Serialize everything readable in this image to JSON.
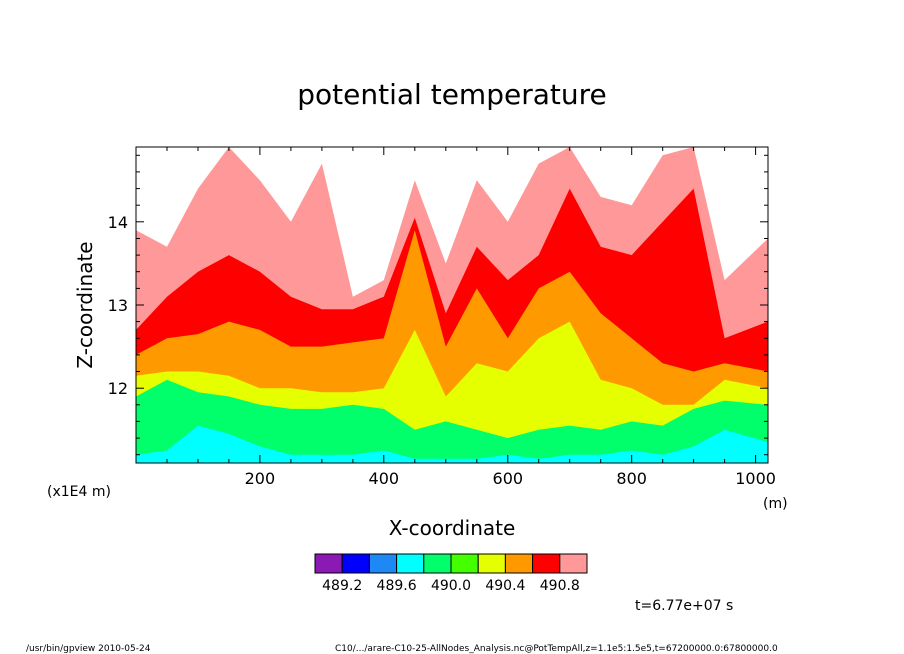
{
  "chart_data": {
    "type": "heatmap",
    "title": "potential temperature",
    "xlabel": "X-coordinate",
    "ylabel": "Z-coordinate",
    "x_unit": "(m)",
    "y_unit": "(x1E4 m)",
    "xlim": [
      0,
      1020
    ],
    "ylim": [
      11.1,
      14.9
    ],
    "xticks": [
      200,
      400,
      600,
      800,
      1000
    ],
    "yticks": [
      12,
      13,
      14
    ],
    "xtick_labels": [
      "200",
      "400",
      "600",
      "800",
      "1000"
    ],
    "ytick_labels": [
      "12",
      "13",
      "14"
    ],
    "colorbar": {
      "colors": [
        "#8b1ab4",
        "#0000ff",
        "#1e88f5",
        "#00ffff",
        "#00ff6a",
        "#44ff00",
        "#e6ff00",
        "#ff9900",
        "#ff0000",
        "#ff9999"
      ],
      "labels": [
        "489.2",
        "489.6",
        "490.0",
        "490.4",
        "490.8"
      ]
    },
    "contour_boundaries": {
      "x": [
        0,
        50,
        100,
        150,
        200,
        250,
        300,
        350,
        400,
        450,
        500,
        550,
        600,
        650,
        700,
        750,
        800,
        850,
        900,
        950,
        1020
      ],
      "z_cyan_top": [
        11.2,
        11.25,
        11.55,
        11.45,
        11.3,
        11.2,
        11.2,
        11.2,
        11.25,
        11.15,
        11.15,
        11.15,
        11.2,
        11.15,
        11.2,
        11.2,
        11.25,
        11.2,
        11.3,
        11.5,
        11.35
      ],
      "z_green_top": [
        11.9,
        12.1,
        11.95,
        11.9,
        11.8,
        11.75,
        11.75,
        11.8,
        11.75,
        11.5,
        11.6,
        11.5,
        11.4,
        11.5,
        11.55,
        11.5,
        11.6,
        11.55,
        11.75,
        11.85,
        11.8
      ],
      "z_yellow_top": [
        12.15,
        12.2,
        12.2,
        12.15,
        12.0,
        12.0,
        11.95,
        11.95,
        12.0,
        12.7,
        11.9,
        12.3,
        12.2,
        12.6,
        12.8,
        12.1,
        12.0,
        11.8,
        11.8,
        12.1,
        12.0
      ],
      "z_orange_top": [
        12.4,
        12.6,
        12.65,
        12.8,
        12.7,
        12.5,
        12.5,
        12.55,
        12.6,
        13.9,
        12.5,
        13.2,
        12.6,
        13.2,
        13.4,
        12.9,
        12.6,
        12.3,
        12.2,
        12.3,
        12.2
      ],
      "z_red_top": [
        12.7,
        13.1,
        13.4,
        13.6,
        13.4,
        13.1,
        12.95,
        12.95,
        13.1,
        14.05,
        12.9,
        13.7,
        13.3,
        13.6,
        14.4,
        13.7,
        13.6,
        14.0,
        14.4,
        12.6,
        12.8
      ],
      "z_pink_top": [
        13.9,
        13.7,
        14.4,
        14.9,
        14.5,
        14.0,
        14.7,
        13.1,
        13.3,
        14.5,
        13.5,
        14.5,
        14.0,
        14.7,
        14.9,
        14.3,
        14.2,
        14.8,
        14.9,
        13.3,
        13.8
      ]
    }
  },
  "footer": {
    "left": "/usr/bin/gpview  2010-05-24",
    "right": "C10/.../arare-C10-25-AllNodes_Analysis.nc@PotTempAll,z=1.1e5:1.5e5,t=67200000.0:67800000.0",
    "time": "t=6.77e+07  s"
  }
}
